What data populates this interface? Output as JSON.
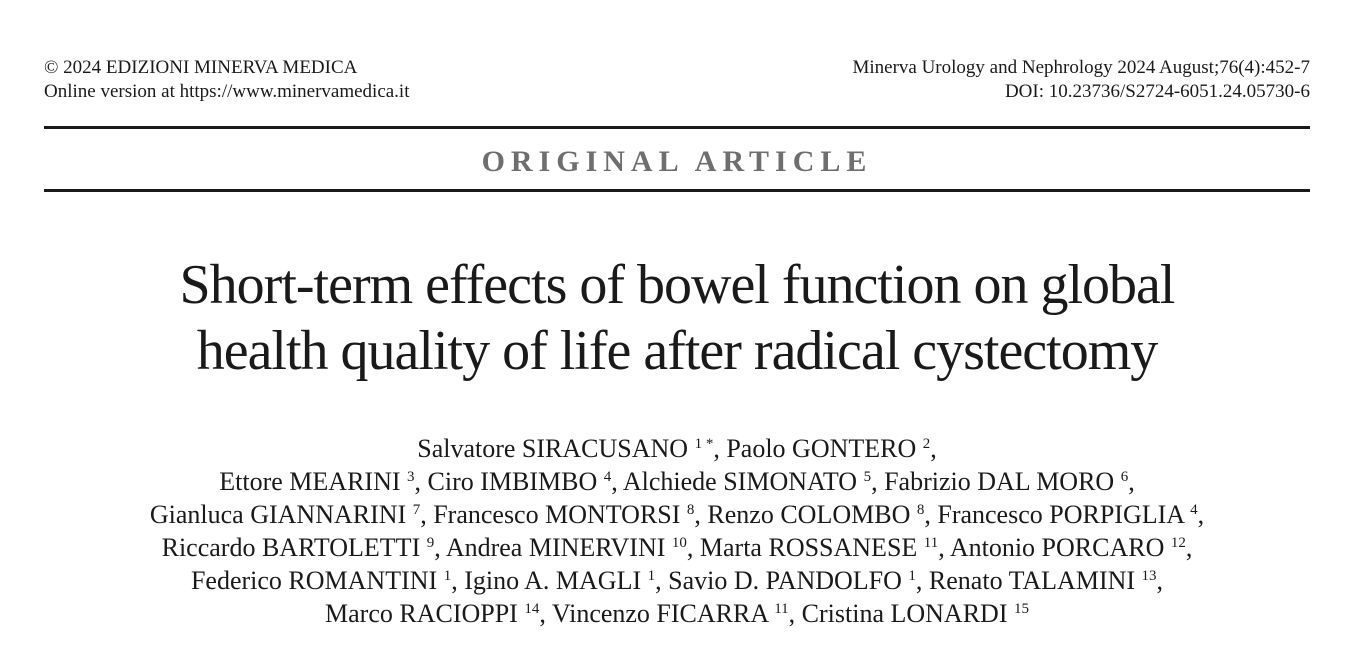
{
  "header": {
    "copyright": "© 2024 EDIZIONI MINERVA MEDICA",
    "online_version": "Online version at https://www.minervamedica.it",
    "citation": "Minerva Urology and Nephrology 2024 August;76(4):452-7",
    "doi": "DOI: 10.23736/S2724-6051.24.05730-6"
  },
  "section_label": "ORIGINAL ARTICLE",
  "title": {
    "line1": "Short-term effects of bowel function on global",
    "line2": "health quality of life after radical cystectomy"
  },
  "authors": [
    [
      {
        "name": "Salvatore SIRACUSANO",
        "aff": "1 *",
        "sep": ", "
      },
      {
        "name": "Paolo GONTERO",
        "aff": "2",
        "sep": ","
      }
    ],
    [
      {
        "name": "Ettore MEARINI",
        "aff": "3",
        "sep": ", "
      },
      {
        "name": "Ciro IMBIMBO",
        "aff": "4",
        "sep": ", "
      },
      {
        "name": "Alchiede SIMONATO",
        "aff": "5",
        "sep": ", "
      },
      {
        "name": "Fabrizio DAL MORO",
        "aff": "6",
        "sep": ","
      }
    ],
    [
      {
        "name": "Gianluca GIANNARINI",
        "aff": "7",
        "sep": ", "
      },
      {
        "name": "Francesco MONTORSI",
        "aff": "8",
        "sep": ", "
      },
      {
        "name": "Renzo COLOMBO",
        "aff": "8",
        "sep": ", "
      },
      {
        "name": "Francesco PORPIGLIA",
        "aff": "4",
        "sep": ","
      }
    ],
    [
      {
        "name": "Riccardo BARTOLETTI",
        "aff": "9",
        "sep": ", "
      },
      {
        "name": "Andrea MINERVINI",
        "aff": "10",
        "sep": ", "
      },
      {
        "name": "Marta ROSSANESE",
        "aff": "11",
        "sep": ", "
      },
      {
        "name": "Antonio PORCARO",
        "aff": "12",
        "sep": ","
      }
    ],
    [
      {
        "name": "Federico ROMANTINI",
        "aff": "1",
        "sep": ", "
      },
      {
        "name": "Igino A. MAGLI",
        "aff": "1",
        "sep": ", "
      },
      {
        "name": "Savio D. PANDOLFO",
        "aff": "1",
        "sep": ", "
      },
      {
        "name": "Renato TALAMINI",
        "aff": "13",
        "sep": ","
      }
    ],
    [
      {
        "name": "Marco RACIOPPI",
        "aff": "14",
        "sep": ", "
      },
      {
        "name": "Vincenzo FICARRA",
        "aff": "11",
        "sep": ", "
      },
      {
        "name": "Cristina LONARDI",
        "aff": "15",
        "sep": ""
      }
    ]
  ]
}
